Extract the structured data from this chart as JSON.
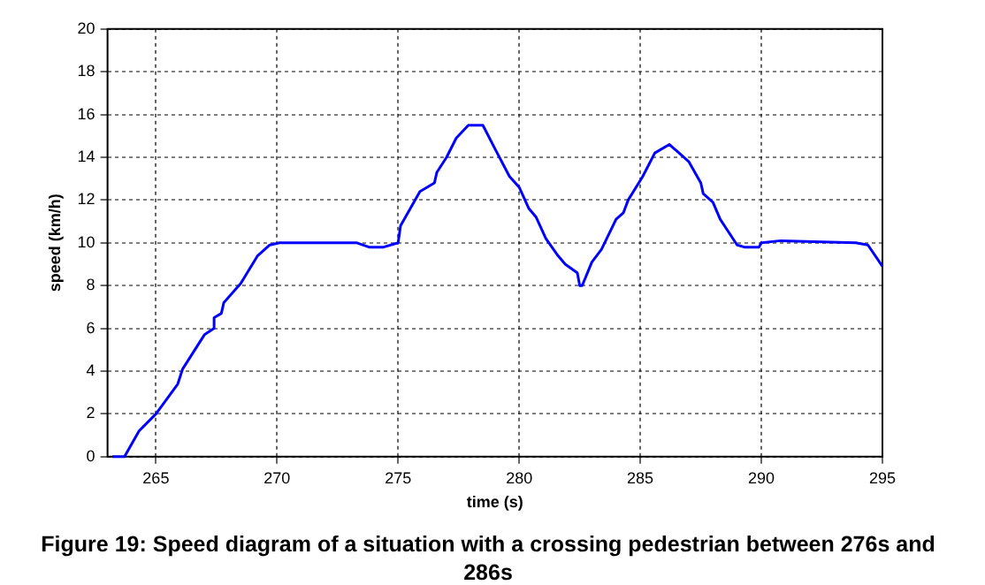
{
  "chart_data": {
    "type": "line",
    "title": "Figure 19: Speed diagram of a situation with a crossing pedestrian between 276s and 286s",
    "xlabel": "time (s)",
    "ylabel": "speed (km/h)",
    "x": [
      263.2,
      263.7,
      264.3,
      265,
      265.9,
      266.1,
      267,
      267.4,
      267.4,
      267.7,
      267.8,
      268.5,
      269.2,
      269.7,
      270.1,
      273.3,
      273.8,
      274.4,
      275,
      275.1,
      275.9,
      276.5,
      276.6,
      277,
      277.4,
      277.9,
      278.5,
      279,
      279.6,
      280,
      280.4,
      280.7,
      281.1,
      281.6,
      281.9,
      282.4,
      282.5,
      282.6,
      283,
      283.4,
      284,
      284.3,
      284.5,
      285.1,
      285.6,
      286.2,
      286.5,
      287,
      287.5,
      287.6,
      288,
      288.3,
      289,
      289.3,
      289.9,
      290,
      290.8,
      293.9,
      294.4,
      295
    ],
    "series": [
      {
        "color": "#0000ff",
        "values": [
          0,
          0,
          1.2,
          2,
          3.4,
          4.1,
          5.7,
          6,
          6.5,
          6.7,
          7.2,
          8.1,
          9.4,
          9.9,
          10,
          10,
          9.8,
          9.8,
          10,
          10.8,
          12.4,
          12.8,
          13.3,
          14,
          14.9,
          15.5,
          15.5,
          14.4,
          13.1,
          12.6,
          11.6,
          11.2,
          10.2,
          9.4,
          9,
          8.6,
          8,
          8,
          9.1,
          9.7,
          11.1,
          11.4,
          12,
          13.1,
          14.2,
          14.6,
          14.3,
          13.8,
          12.8,
          12.3,
          11.9,
          11.1,
          9.9,
          9.8,
          9.8,
          10,
          10.1,
          10,
          9.9,
          8.9
        ]
      }
    ],
    "xlim": [
      263,
      295
    ],
    "xticks": [
      265,
      270,
      275,
      280,
      285,
      290,
      295
    ],
    "ylim": [
      0,
      20
    ],
    "yticks": [
      0,
      2,
      4,
      6,
      8,
      10,
      12,
      14,
      16,
      18,
      20
    ],
    "grid": true,
    "legend": false,
    "marker": "none",
    "line_style": "solid"
  }
}
